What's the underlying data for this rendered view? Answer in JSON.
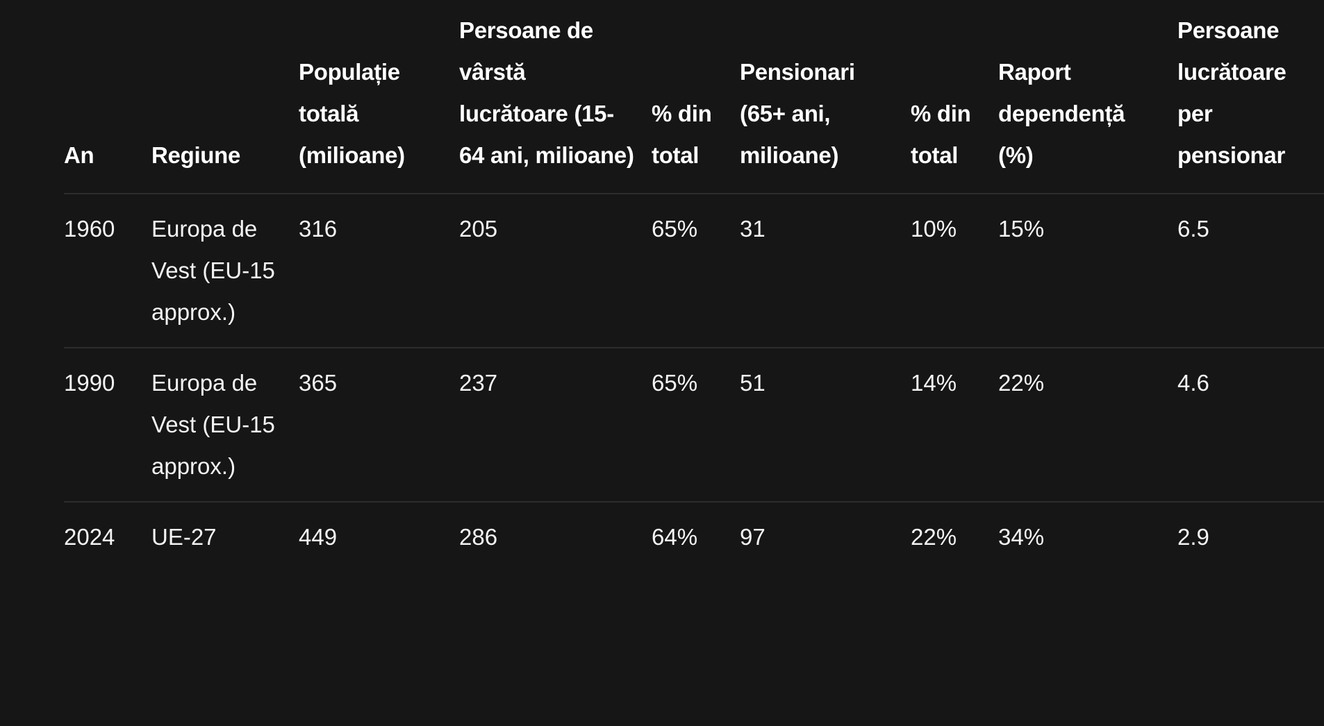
{
  "table": {
    "headers": [
      "An",
      "Regiune",
      "Populație totală (milioane)",
      "Persoane de vârstă lucrătoare (15-64 ani, milioane)",
      "% din total",
      "Pensionari (65+ ani, milioane)",
      "% din total",
      "Raport dependență (%)",
      "Persoane lucrătoare per pensionar"
    ],
    "rows": [
      [
        "1960",
        "Europa de Vest (EU-15 approx.)",
        "316",
        "205",
        "65%",
        "31",
        "10%",
        "15%",
        "6.5"
      ],
      [
        "1990",
        "Europa de Vest (EU-15 approx.)",
        "365",
        "237",
        "65%",
        "51",
        "14%",
        "22%",
        "4.6"
      ],
      [
        "2024",
        "UE-27",
        "449",
        "286",
        "64%",
        "97",
        "22%",
        "34%",
        "2.9"
      ]
    ]
  },
  "colors": {
    "background": "#161616",
    "text": "#ffffff",
    "divider": "#2d2d2d"
  }
}
